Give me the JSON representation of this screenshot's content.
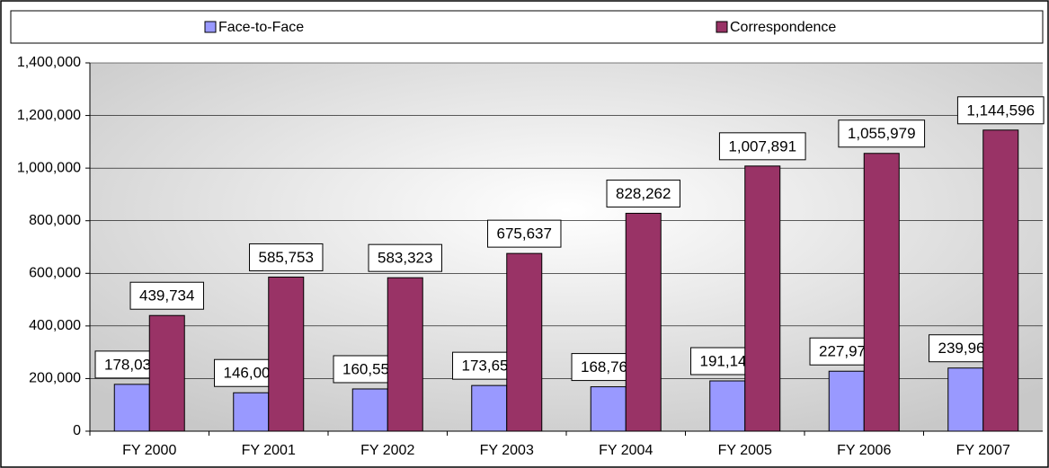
{
  "chart_data": {
    "type": "bar",
    "categories": [
      "FY 2000",
      "FY 2001",
      "FY 2002",
      "FY 2003",
      "FY 2004",
      "FY 2005",
      "FY 2006",
      "FY 2007"
    ],
    "series": [
      {
        "name": "Face-to-Face",
        "color": "#9999ff",
        "values": [
          178031,
          146003,
          160558,
          173659,
          168766,
          191144,
          227971,
          239967
        ],
        "value_labels": [
          "178,031",
          "146,003",
          "160,558",
          "173,659",
          "168,766",
          "191,144",
          "227,971",
          "239,967"
        ]
      },
      {
        "name": "Correspondence",
        "color": "#993366",
        "values": [
          439734,
          585753,
          583323,
          675637,
          828262,
          1007891,
          1055979,
          1144596
        ],
        "value_labels": [
          "439,734",
          "585,753",
          "583,323",
          "675,637",
          "828,262",
          "1,007,891",
          "1,055,979",
          "1,144,596"
        ]
      }
    ],
    "ylim": [
      0,
      1400000
    ],
    "yticks": [
      0,
      {
        "value": 200000,
        "label": "200,000"
      },
      {
        "value": 400000,
        "label": "400,000"
      },
      {
        "value": 600000,
        "label": "600,000"
      },
      {
        "value": 800000,
        "label": "800,000"
      },
      {
        "value": 1000000,
        "label": "1,000,000"
      },
      {
        "value": 1200000,
        "label": "1,200,000"
      },
      {
        "value": 1400000,
        "label": "1,400,000"
      }
    ],
    "grid": true,
    "legend": "top"
  }
}
